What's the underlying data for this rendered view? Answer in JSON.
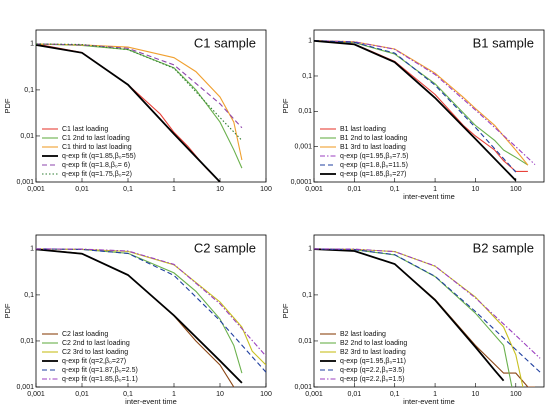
{
  "chart_data": [
    {
      "type": "line",
      "title": "C1 sample",
      "ylabel": "PDF",
      "xscale": "log",
      "yscale": "log",
      "legend": "lower left",
      "xlim": [
        0.001,
        100
      ],
      "ylim": [
        0.001,
        2
      ],
      "xticks": [
        {
          "value": 0.001,
          "label": "0,001"
        },
        {
          "value": 0.01,
          "label": "0,01"
        },
        {
          "value": 0.1,
          "label": "0,1"
        },
        1,
        10,
        100
      ],
      "yticks": [
        {
          "value": 0.001,
          "label": "0,001"
        },
        {
          "value": 0.01,
          "label": "0,01"
        },
        {
          "value": 0.1,
          "label": "0,1"
        },
        1
      ],
      "series": [
        {
          "name": "C1 last loading",
          "color": "#e8423a",
          "dash": "solid",
          "x": [
            0.001,
            0.01,
            0.1,
            0.5,
            1,
            2,
            5,
            10
          ],
          "values": [
            1,
            0.65,
            0.13,
            0.03,
            0.012,
            0.006,
            0.002,
            0.001
          ]
        },
        {
          "name": "C1 2nd to last loading",
          "color": "#6ab04c",
          "dash": "solid",
          "x": [
            0.001,
            0.01,
            0.1,
            1,
            3,
            10,
            20,
            30
          ],
          "values": [
            1,
            0.92,
            0.75,
            0.3,
            0.1,
            0.02,
            0.005,
            0.002
          ]
        },
        {
          "name": "C1 third to last loading",
          "color": "#f0a030",
          "dash": "solid",
          "x": [
            0.001,
            0.01,
            0.1,
            1,
            3,
            10,
            20,
            30
          ],
          "values": [
            1,
            0.95,
            0.85,
            0.5,
            0.25,
            0.07,
            0.02,
            0.003
          ]
        },
        {
          "name": "q-exp fit (q=1.85,β₀=55)",
          "color": "#000000",
          "dash": "thick",
          "x": [
            0.001,
            0.01,
            0.1,
            1,
            10
          ],
          "values": [
            0.95,
            0.64,
            0.13,
            0.011,
            0.001
          ]
        },
        {
          "name": "q-exp fit (q=1.8,β₀= 6)",
          "color": "#8e44ad",
          "dash": "dashed",
          "x": [
            0.001,
            0.01,
            0.1,
            1,
            10,
            30
          ],
          "values": [
            1,
            0.95,
            0.8,
            0.35,
            0.05,
            0.015
          ]
        },
        {
          "name": "q-exp fit (q=1.75,β₀=2)",
          "color": "#2e7d32",
          "dash": "dotted",
          "x": [
            0.001,
            0.01,
            0.1,
            1,
            10,
            30
          ],
          "values": [
            1,
            0.97,
            0.75,
            0.295,
            0.025,
            0.008
          ]
        }
      ]
    },
    {
      "type": "line",
      "title": "B1 sample",
      "xlabel": "inter-event time",
      "ylabel": "PDF",
      "xscale": "log",
      "yscale": "log",
      "legend": "lower left",
      "xlim": [
        0.001,
        500
      ],
      "ylim": [
        0.0001,
        2
      ],
      "xticks": [
        {
          "value": 0.001,
          "label": "0,001"
        },
        {
          "value": 0.01,
          "label": "0,01"
        },
        {
          "value": 0.1,
          "label": "0,1"
        },
        1,
        10,
        100
      ],
      "yticks": [
        {
          "value": 0.0001,
          "label": "0,0001"
        },
        {
          "value": 0.001,
          "label": "0,001"
        },
        {
          "value": 0.01,
          "label": "0,01"
        },
        {
          "value": 0.1,
          "label": "0,1"
        },
        1
      ],
      "series": [
        {
          "name": "B1 last loading",
          "color": "#e8423a",
          "dash": "solid",
          "x": [
            0.001,
            0.01,
            0.1,
            1,
            5,
            10,
            30,
            50,
            100,
            200
          ],
          "values": [
            1,
            0.8,
            0.26,
            0.03,
            0.004,
            0.002,
            0.0008,
            0.0004,
            0.0002,
            0.0002
          ]
        },
        {
          "name": "B1 2nd to last loading",
          "color": "#6ab04c",
          "dash": "solid",
          "x": [
            0.001,
            0.01,
            0.1,
            1,
            5,
            10,
            30,
            50,
            100,
            200
          ],
          "values": [
            1,
            0.88,
            0.42,
            0.06,
            0.009,
            0.004,
            0.0015,
            0.0008,
            0.0005,
            0.0003
          ]
        },
        {
          "name": "B1 3rd to last  loading",
          "color": "#f0a030",
          "dash": "solid",
          "x": [
            0.001,
            0.01,
            0.1,
            1,
            5,
            10,
            30,
            50,
            100,
            200
          ],
          "values": [
            1,
            0.93,
            0.58,
            0.12,
            0.025,
            0.012,
            0.004,
            0.002,
            0.0008,
            0.0003
          ]
        },
        {
          "name": "q-exp (q=1.95,β₀=7.5)",
          "color": "#9b3fc0",
          "dash": "dashdot",
          "x": [
            0.001,
            0.01,
            0.1,
            1,
            10,
            100,
            300
          ],
          "values": [
            1,
            0.93,
            0.568,
            0.11,
            0.011,
            0.001,
            0.00031
          ]
        },
        {
          "name": "q-exp (q=1.8,β₀=11.5)",
          "color": "#1f3f9f",
          "dash": "dashed",
          "x": [
            0.001,
            0.01,
            0.1,
            1,
            10,
            100
          ],
          "values": [
            1,
            0.896,
            0.443,
            0.055,
            0.0035,
            0.00019
          ]
        },
        {
          "name": "q-exp (q=1.85,β₀=27)",
          "color": "#000000",
          "dash": "thick",
          "x": [
            0.001,
            0.01,
            0.1,
            1,
            10,
            100
          ],
          "values": [
            0.98,
            0.784,
            0.246,
            0.024,
            0.00166,
            0.00011
          ]
        }
      ]
    },
    {
      "type": "line",
      "title": "C2 sample",
      "xlabel": "inter-event time",
      "ylabel": "PDF",
      "xscale": "log",
      "yscale": "log",
      "legend": "lower left",
      "xlim": [
        0.001,
        100
      ],
      "ylim": [
        0.001,
        2
      ],
      "xticks": [
        {
          "value": 0.001,
          "label": "0,001"
        },
        {
          "value": 0.01,
          "label": "0,01"
        },
        {
          "value": 0.1,
          "label": "0,1"
        },
        1,
        10,
        100
      ],
      "yticks": [
        {
          "value": 0.001,
          "label": "0,001"
        },
        {
          "value": 0.01,
          "label": "0,01"
        },
        {
          "value": 0.1,
          "label": "0,1"
        },
        1
      ],
      "series": [
        {
          "name": "C2 last loading",
          "color": "#8b4513",
          "dash": "solid",
          "x": [
            0.001,
            0.01,
            0.1,
            1,
            3,
            10,
            20
          ],
          "values": [
            1,
            0.79,
            0.27,
            0.035,
            0.01,
            0.003,
            0.001
          ]
        },
        {
          "name": "C2 2nd to last  loading",
          "color": "#6ab04c",
          "dash": "solid",
          "x": [
            0.001,
            0.01,
            0.1,
            1,
            3,
            10,
            20,
            30
          ],
          "values": [
            1,
            0.97,
            0.8,
            0.3,
            0.12,
            0.03,
            0.008,
            0.002
          ]
        },
        {
          "name": "C2 3rd to last loading",
          "color": "#c8c020",
          "dash": "solid",
          "x": [
            0.001,
            0.01,
            0.1,
            1,
            10,
            30,
            50,
            100
          ],
          "values": [
            1,
            0.98,
            0.88,
            0.45,
            0.07,
            0.02,
            0.006,
            0.003
          ]
        },
        {
          "name": "q-exp fit (q=2,β₀=27)",
          "color": "#000000",
          "dash": "thick",
          "x": [
            0.001,
            0.01,
            0.1,
            1,
            10,
            30
          ],
          "values": [
            0.974,
            0.787,
            0.27,
            0.0357,
            0.0037,
            0.00123
          ]
        },
        {
          "name": "q-exp fit (q=1.87,β₀=2.5)",
          "color": "#1f3f9f",
          "dash": "dashed",
          "x": [
            0.001,
            0.01,
            0.1,
            1,
            10,
            100
          ],
          "values": [
            1,
            0.975,
            0.798,
            0.265,
            0.0276,
            0.0021
          ]
        },
        {
          "name": "q-exp fit (q=1.85,β₀=1.1)",
          "color": "#9b3fc0",
          "dash": "dashdot",
          "x": [
            0.001,
            0.01,
            0.1,
            1,
            10,
            100
          ],
          "values": [
            1,
            0.99,
            0.9,
            0.46,
            0.064,
            0.0047
          ]
        }
      ]
    },
    {
      "type": "line",
      "title": "B2 sample",
      "xlabel": "inter-event time",
      "ylabel": "PDF",
      "xscale": "log",
      "yscale": "log",
      "legend": "lower left",
      "xlim": [
        0.001,
        500
      ],
      "ylim": [
        0.001,
        2
      ],
      "xticks": [
        {
          "value": 0.001,
          "label": "0,001"
        },
        {
          "value": 0.01,
          "label": "0,01"
        },
        {
          "value": 0.1,
          "label": "0,1"
        },
        1,
        10,
        100
      ],
      "yticks": [
        {
          "value": 0.001,
          "label": "0,001"
        },
        {
          "value": 0.01,
          "label": "0,01"
        },
        {
          "value": 0.1,
          "label": "0,1"
        },
        1
      ],
      "series": [
        {
          "name": "B2 last loading",
          "color": "#8b4513",
          "dash": "solid",
          "x": [
            0.001,
            0.01,
            0.1,
            1,
            10,
            50,
            100,
            200,
            300
          ],
          "values": [
            1,
            0.9,
            0.47,
            0.08,
            0.008,
            0.002,
            0.002,
            0.001,
            0.001
          ]
        },
        {
          "name": "B2 2nd to last loading",
          "color": "#6ab04c",
          "dash": "solid",
          "x": [
            0.001,
            0.01,
            0.1,
            1,
            10,
            50,
            80
          ],
          "values": [
            1,
            0.96,
            0.74,
            0.25,
            0.04,
            0.008,
            0.001
          ]
        },
        {
          "name": "B2 3rd to last loading",
          "color": "#c8c020",
          "dash": "solid",
          "x": [
            0.001,
            0.01,
            0.1,
            1,
            10,
            50,
            100,
            150
          ],
          "values": [
            1,
            0.98,
            0.87,
            0.42,
            0.09,
            0.02,
            0.005,
            0.001
          ]
        },
        {
          "name": "q-exp (q=1.95,β₀=11)",
          "color": "#000000",
          "dash": "thick",
          "x": [
            0.001,
            0.01,
            0.1,
            1,
            10,
            30,
            50
          ],
          "values": [
            0.99,
            0.9,
            0.47,
            0.077,
            0.0074,
            0.0023,
            0.00137
          ]
        },
        {
          "name": "q-exp (q=2.2,β₀=3.5)",
          "color": "#1f3f9f",
          "dash": "dashed",
          "x": [
            0.001,
            0.01,
            0.1,
            1,
            10,
            100,
            400
          ],
          "values": [
            1,
            0.966,
            0.747,
            0.253,
            0.0436,
            0.0065,
            0.0021
          ]
        },
        {
          "name": "q-exp (q=2.2,β₀=1.5)",
          "color": "#9b3fc0",
          "dash": "dashdot",
          "x": [
            0.001,
            0.01,
            0.1,
            1,
            10,
            100,
            400
          ],
          "values": [
            1,
            0.99,
            0.871,
            0.424,
            0.086,
            0.0132,
            0.0042
          ]
        }
      ]
    }
  ]
}
